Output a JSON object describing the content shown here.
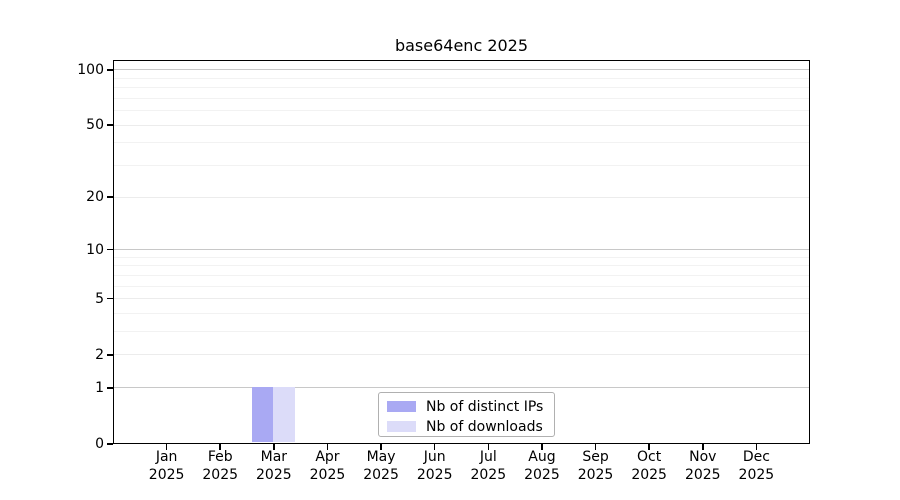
{
  "chart_data": {
    "type": "bar",
    "title": "base64enc 2025",
    "categories": [
      "Jan 2025",
      "Feb 2025",
      "Mar 2025",
      "Apr 2025",
      "May 2025",
      "Jun 2025",
      "Jul 2025",
      "Aug 2025",
      "Sep 2025",
      "Oct 2025",
      "Nov 2025",
      "Dec 2025"
    ],
    "series": [
      {
        "name": "Nb of distinct IPs",
        "color": "#a9a9f3",
        "values": [
          0,
          0,
          1,
          0,
          0,
          0,
          0,
          0,
          0,
          0,
          0,
          0
        ]
      },
      {
        "name": "Nb of downloads",
        "color": "#dcdcf9",
        "values": [
          0,
          0,
          1,
          0,
          0,
          0,
          0,
          0,
          0,
          0,
          0,
          0
        ]
      }
    ],
    "y_axis": {
      "scale": "log1p",
      "range": [
        0,
        113
      ],
      "tick_values": [
        0,
        1,
        2,
        5,
        10,
        20,
        50,
        100
      ],
      "tick_labels": [
        "0",
        "1",
        "2",
        "5",
        "10",
        "20",
        "50",
        "100"
      ],
      "minor_gridline_values": [
        3,
        4,
        6,
        7,
        8,
        9,
        30,
        40,
        60,
        70,
        80,
        90
      ],
      "emphasized_gridline_values": [
        1,
        10,
        100
      ]
    },
    "x_axis": {
      "tick_count": 12
    },
    "grid": true,
    "legend": {
      "position": "lower center",
      "entries": [
        "Nb of distinct IPs",
        "Nb of downloads"
      ]
    },
    "colors": {
      "gridline_major": "#c8c8c8",
      "gridline_labeled": "#ececec",
      "gridline_minor": "#f2f2f2",
      "axis": "#000000",
      "background": "#ffffff"
    }
  }
}
